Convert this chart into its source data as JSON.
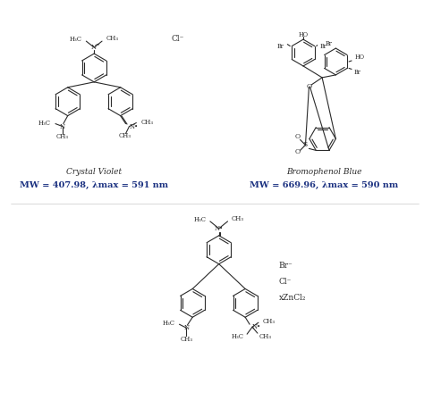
{
  "bg_color": "#ffffff",
  "text_color": "#2a2a2a",
  "cv_label": "Crystal Violet",
  "cv_mw": "MW = 407.98, λmax = 591 nm",
  "bb_label": "Bromophenol Blue",
  "bb_mw": "MW = 669.96, λmax = 590 nm",
  "cv_ion": "Cl⁻",
  "mb_ions": [
    "Br⁻",
    "Cl⁻",
    "xZnCl₂"
  ],
  "line_color": "#2a2a2a",
  "line_width": 0.8,
  "font_size_atom": 5.0,
  "font_size_label": 6.5,
  "font_size_mw": 7.0,
  "font_size_ion": 6.5,
  "mw_color": "#1a3080"
}
